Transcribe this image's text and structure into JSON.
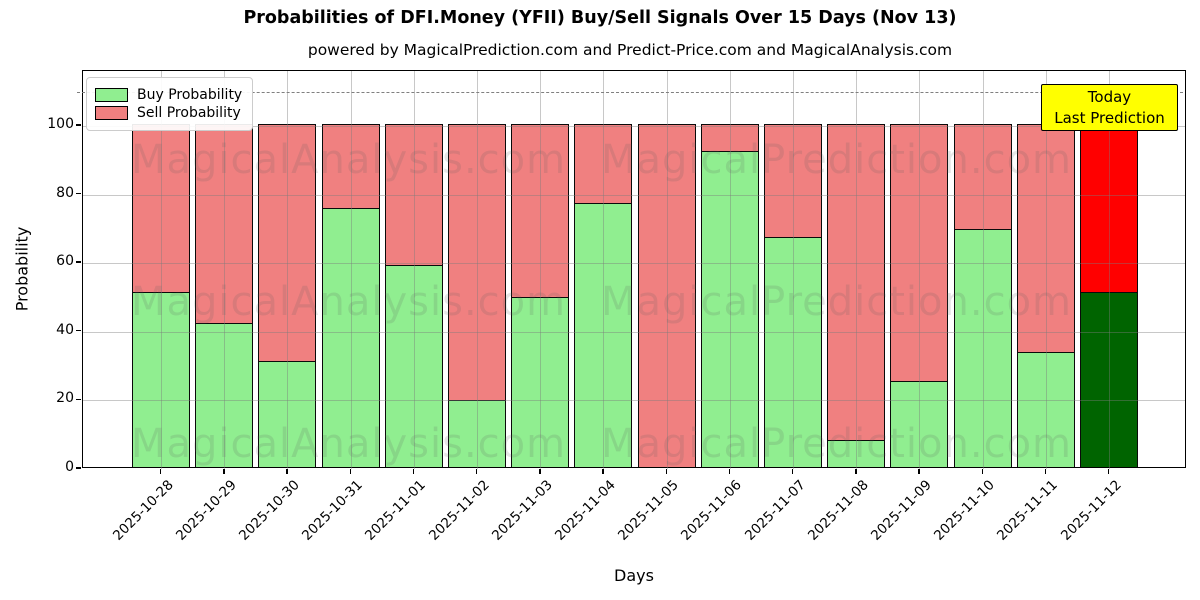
{
  "chart_data": {
    "type": "bar",
    "stacked": true,
    "title": "Probabilities of DFI.Money (YFII) Buy/Sell Signals Over 15 Days (Nov 13)",
    "subtitle": "powered by MagicalPrediction.com and Predict-Price.com and MagicalAnalysis.com",
    "xlabel": "Days",
    "ylabel": "Probability",
    "categories": [
      "2025-10-28",
      "2025-10-29",
      "2025-10-30",
      "2025-10-31",
      "2025-11-01",
      "2025-11-02",
      "2025-11-03",
      "2025-11-04",
      "2025-11-05",
      "2025-11-06",
      "2025-11-07",
      "2025-11-08",
      "2025-11-09",
      "2025-11-10",
      "2025-11-11",
      "2025-11-12"
    ],
    "series": [
      {
        "name": "Buy Probability",
        "color": "#90EE90",
        "values": [
          51,
          42,
          31,
          75.5,
          59,
          19.5,
          49.5,
          77,
          0,
          92,
          67,
          8,
          25,
          69.5,
          33.5,
          51
        ]
      },
      {
        "name": "Sell Probability",
        "color": "#F08080",
        "values": [
          49,
          58,
          69,
          24.5,
          41,
          80.5,
          50.5,
          23,
          100,
          8,
          33,
          92,
          75,
          30.5,
          66.5,
          49
        ]
      }
    ],
    "today_bar": {
      "index": 15,
      "buy_color": "#006400",
      "sell_color": "#FF0000",
      "label_line1": "Today",
      "label_line2": "Last Prediction",
      "box_color": "#FFFF00"
    },
    "ylim": [
      0,
      116
    ],
    "yticks": [
      0,
      20,
      40,
      60,
      80,
      100
    ],
    "dashed_line_y": 110,
    "grid": true,
    "legend_position": "upper-left",
    "watermark_left": "MagicalAnalysis.com",
    "watermark_right": "MagicalPrediction.com"
  }
}
